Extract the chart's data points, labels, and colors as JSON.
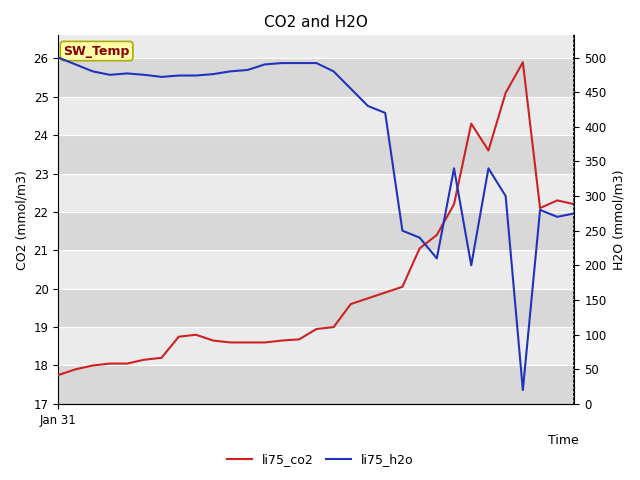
{
  "title": "CO2 and H2O",
  "xlabel": "Time",
  "ylabel_left": "CO2 (mmol/m3)",
  "ylabel_right": "H2O (mmol/m3)",
  "x_tick_label": "Jan 31",
  "ylim_left": [
    17.0,
    26.6
  ],
  "ylim_right": [
    0,
    532
  ],
  "yticks_left": [
    17.0,
    18.0,
    19.0,
    20.0,
    21.0,
    22.0,
    23.0,
    24.0,
    25.0,
    26.0
  ],
  "yticks_right": [
    0,
    50,
    100,
    150,
    200,
    250,
    300,
    350,
    400,
    450,
    500
  ],
  "annotation_text": "SW_Temp",
  "annotation_facecolor": "#FFFFAA",
  "annotation_edgecolor": "#AAAA00",
  "annotation_textcolor": "#880000",
  "co2_color": "#CC2222",
  "h2o_color": "#2233BB",
  "background_color_light": "#EBEBEB",
  "background_color_dark": "#D8D8D8",
  "grid_color": "#FFFFFF",
  "co2_x": [
    0,
    1,
    2,
    3,
    4,
    5,
    6,
    7,
    8,
    9,
    10,
    11,
    12,
    13,
    14,
    15,
    16,
    17,
    18,
    19,
    20,
    21,
    22,
    23,
    24,
    25,
    26,
    27,
    28,
    29,
    30
  ],
  "co2_y": [
    17.75,
    17.9,
    18.0,
    18.05,
    18.05,
    18.15,
    18.2,
    18.75,
    18.8,
    18.65,
    18.6,
    18.6,
    18.6,
    18.65,
    18.68,
    18.95,
    19.0,
    19.6,
    19.75,
    19.9,
    20.05,
    21.05,
    21.4,
    22.2,
    24.3,
    23.6,
    25.1,
    25.9,
    22.1,
    22.3,
    22.2
  ],
  "h2o_x": [
    0,
    1,
    2,
    3,
    4,
    5,
    6,
    7,
    8,
    9,
    10,
    11,
    12,
    13,
    14,
    15,
    16,
    17,
    18,
    19,
    20,
    21,
    22,
    23,
    24,
    25,
    26,
    27,
    28,
    29,
    30
  ],
  "h2o_y": [
    500,
    490,
    480,
    475,
    477,
    475,
    472,
    474,
    474,
    476,
    480,
    482,
    490,
    492,
    492,
    492,
    480,
    455,
    430,
    420,
    250,
    240,
    210,
    340,
    200,
    340,
    300,
    20,
    280,
    270,
    275
  ],
  "legend_co2": "li75_co2",
  "legend_h2o": "li75_h2o"
}
